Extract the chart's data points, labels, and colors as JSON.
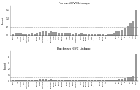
{
  "forward_title": "Forward GVC Linkage",
  "backward_title": "Backward GVC Linkage",
  "ylabel": "Percent",
  "background_color": "#ffffff",
  "bar_color": "#999999",
  "countries": [
    "Russia",
    "Brazil",
    "India",
    "Indonesia",
    "Turkey",
    "South Africa",
    "Argentina",
    "Mexico",
    "Saudi Arabia",
    "Australia",
    "Canada",
    "South Korea",
    "Taiwan",
    "Switzerland",
    "Netherlands",
    "Belgium",
    "Sweden",
    "Austria",
    "Denmark",
    "Finland",
    "Norway",
    "Portugal",
    "Greece",
    "Czech Rep.",
    "Hungary",
    "Poland",
    "Romania",
    "Slovakia",
    "Bulgaria",
    "Croatia",
    "Lithuania",
    "Latvia",
    "Estonia",
    "Slovenia",
    "Malta",
    "Cyprus",
    "Luxembourg",
    "Ireland",
    "Spain",
    "Italy",
    "France",
    "UK",
    "Germany",
    "USA",
    "Japan",
    "China"
  ],
  "forward_values": [
    0.08,
    0.1,
    0.09,
    0.09,
    0.07,
    0.08,
    0.07,
    0.11,
    0.07,
    0.12,
    0.18,
    0.22,
    0.28,
    0.16,
    0.24,
    0.2,
    0.17,
    0.15,
    0.13,
    0.16,
    0.12,
    0.1,
    0.07,
    0.09,
    0.08,
    0.11,
    0.07,
    0.08,
    0.05,
    0.06,
    0.05,
    0.05,
    0.06,
    0.06,
    0.04,
    0.05,
    0.08,
    0.13,
    0.22,
    0.28,
    0.32,
    0.44,
    0.56,
    0.72,
    0.85,
    1.55
  ],
  "backward_values": [
    0.1,
    0.08,
    0.12,
    0.09,
    0.08,
    0.07,
    0.06,
    0.14,
    0.05,
    0.16,
    0.26,
    0.32,
    0.36,
    0.18,
    0.28,
    0.23,
    0.18,
    0.16,
    0.13,
    0.18,
    0.12,
    0.1,
    0.07,
    0.09,
    0.08,
    0.12,
    0.06,
    0.07,
    0.05,
    0.05,
    0.04,
    0.05,
    0.05,
    0.06,
    0.03,
    0.04,
    0.07,
    0.13,
    0.23,
    0.3,
    0.34,
    0.46,
    0.58,
    0.7,
    0.82,
    4.5
  ],
  "forward_ylim": [
    0,
    1.8
  ],
  "backward_ylim": [
    0,
    5.0
  ],
  "forward_yticks": [
    0.0,
    0.5,
    1.0,
    1.5
  ],
  "backward_yticks": [
    0,
    1,
    2,
    3,
    4
  ]
}
